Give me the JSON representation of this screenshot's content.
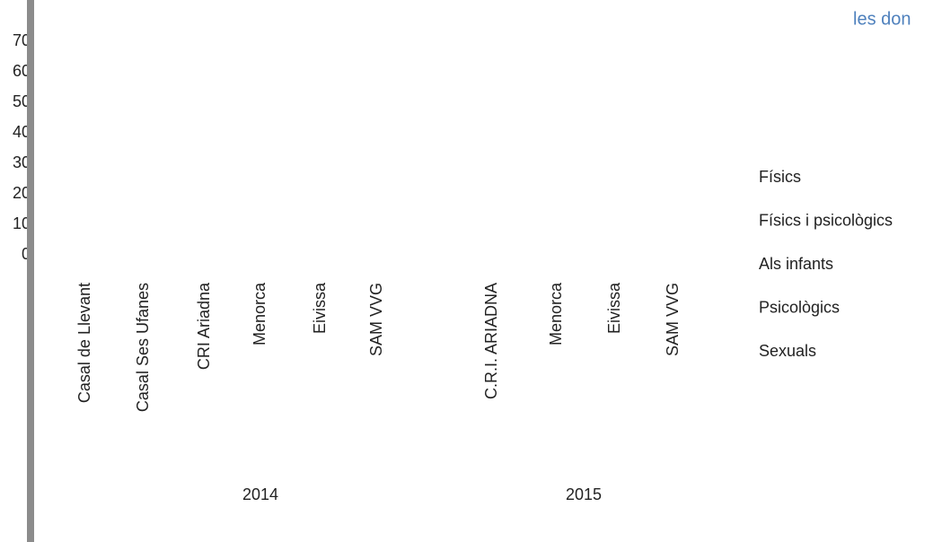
{
  "title_fragment": "les don",
  "y_axis_labels": [
    "70",
    "60",
    "50",
    "40",
    "30",
    "20",
    "10",
    "0"
  ],
  "categories": [
    "Casal de Llevant",
    "Casal Ses Ufanes",
    "CRI Ariadna",
    "Menorca",
    "Eivissa",
    "SAM VVG",
    "C.R.I. ARIADNA",
    "Menorca",
    "Eivissa",
    "SAM VVG"
  ],
  "groups": [
    "2014",
    "2015"
  ],
  "legend": [
    "Físics",
    "Físics i psicològics",
    "Als infants",
    "Psicològics",
    "Sexuals"
  ]
}
